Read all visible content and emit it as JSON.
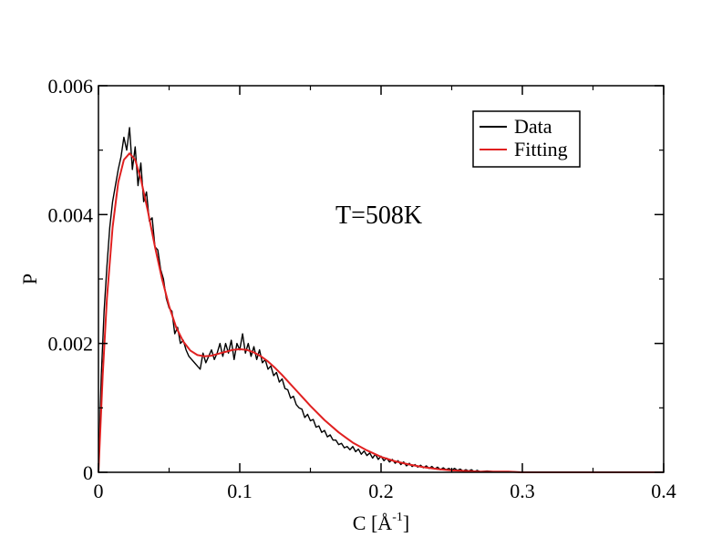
{
  "chart_data": {
    "type": "line",
    "title": "",
    "xlabel": {
      "main": "C [Å",
      "sup": "-1",
      "close": "]"
    },
    "ylabel": "P",
    "xlim": [
      0,
      0.4
    ],
    "ylim": [
      0,
      0.006
    ],
    "x_ticks": [
      {
        "value": 0,
        "label": "0"
      },
      {
        "value": 0.1,
        "label": "0.1"
      },
      {
        "value": 0.2,
        "label": "0.2"
      },
      {
        "value": 0.3,
        "label": "0.3"
      },
      {
        "value": 0.4,
        "label": "0.4"
      }
    ],
    "y_ticks": [
      {
        "value": 0,
        "label": "0"
      },
      {
        "value": 0.002,
        "label": "0.002"
      },
      {
        "value": 0.004,
        "label": "0.004"
      },
      {
        "value": 0.006,
        "label": "0.006"
      }
    ],
    "x_minor_step": 0.05,
    "y_minor_step": 0.001,
    "grid": false,
    "legend_position": "top-right",
    "annotation": "T=508K",
    "series": [
      {
        "name": "Data",
        "color": "#000000",
        "x": [
          0.0,
          0.002,
          0.004,
          0.006,
          0.008,
          0.01,
          0.012,
          0.014,
          0.016,
          0.018,
          0.02,
          0.022,
          0.024,
          0.026,
          0.028,
          0.03,
          0.032,
          0.034,
          0.036,
          0.038,
          0.04,
          0.042,
          0.044,
          0.046,
          0.048,
          0.05,
          0.052,
          0.054,
          0.056,
          0.058,
          0.06,
          0.062,
          0.064,
          0.066,
          0.068,
          0.07,
          0.072,
          0.074,
          0.076,
          0.078,
          0.08,
          0.082,
          0.084,
          0.086,
          0.088,
          0.09,
          0.092,
          0.094,
          0.096,
          0.098,
          0.1,
          0.102,
          0.104,
          0.106,
          0.108,
          0.11,
          0.112,
          0.114,
          0.116,
          0.118,
          0.12,
          0.122,
          0.124,
          0.126,
          0.128,
          0.13,
          0.132,
          0.134,
          0.136,
          0.138,
          0.14,
          0.142,
          0.144,
          0.146,
          0.148,
          0.15,
          0.152,
          0.154,
          0.156,
          0.158,
          0.16,
          0.162,
          0.164,
          0.166,
          0.168,
          0.17,
          0.172,
          0.174,
          0.176,
          0.178,
          0.18,
          0.182,
          0.184,
          0.186,
          0.188,
          0.19,
          0.192,
          0.194,
          0.196,
          0.198,
          0.2,
          0.202,
          0.204,
          0.206,
          0.208,
          0.21,
          0.212,
          0.214,
          0.216,
          0.218,
          0.22,
          0.222,
          0.224,
          0.226,
          0.228,
          0.23,
          0.232,
          0.234,
          0.236,
          0.238,
          0.24,
          0.242,
          0.244,
          0.246,
          0.248,
          0.25,
          0.252,
          0.254,
          0.256,
          0.258,
          0.26,
          0.262,
          0.264,
          0.266,
          0.268,
          0.27,
          0.275,
          0.28,
          0.29,
          0.3,
          0.32,
          0.34,
          0.36,
          0.38,
          0.4
        ],
        "y": [
          0.0,
          0.0015,
          0.0025,
          0.0032,
          0.0038,
          0.0042,
          0.00445,
          0.0047,
          0.0049,
          0.0052,
          0.005,
          0.00535,
          0.0047,
          0.00505,
          0.00445,
          0.0048,
          0.0042,
          0.00435,
          0.0039,
          0.00395,
          0.0035,
          0.00345,
          0.00315,
          0.003,
          0.0027,
          0.00255,
          0.0025,
          0.00215,
          0.00225,
          0.002,
          0.00205,
          0.0019,
          0.0018,
          0.00175,
          0.0017,
          0.00165,
          0.0016,
          0.00185,
          0.0017,
          0.0018,
          0.0019,
          0.00175,
          0.00185,
          0.002,
          0.0018,
          0.002,
          0.00185,
          0.00205,
          0.00175,
          0.002,
          0.0019,
          0.00215,
          0.00185,
          0.002,
          0.0018,
          0.00195,
          0.00175,
          0.0019,
          0.0017,
          0.00175,
          0.0016,
          0.00165,
          0.0015,
          0.00155,
          0.0014,
          0.00145,
          0.0013,
          0.00128,
          0.00115,
          0.00118,
          0.00105,
          0.001,
          0.00098,
          0.00085,
          0.0009,
          0.0008,
          0.00082,
          0.0007,
          0.00072,
          0.00062,
          0.00065,
          0.00055,
          0.00058,
          0.0005,
          0.0005,
          0.00043,
          0.00045,
          0.00038,
          0.0004,
          0.00035,
          0.0004,
          0.00032,
          0.00036,
          0.00028,
          0.00033,
          0.00026,
          0.0003,
          0.00022,
          0.00028,
          0.0002,
          0.00025,
          0.00018,
          0.00022,
          0.00016,
          0.0002,
          0.00014,
          0.00018,
          0.00012,
          0.00016,
          0.0001,
          0.00014,
          9e-05,
          0.00012,
          8e-05,
          0.00011,
          7e-05,
          0.0001,
          6e-05,
          9e-05,
          5e-05,
          8e-05,
          4e-05,
          7e-05,
          4e-05,
          6e-05,
          3e-05,
          6e-05,
          3e-05,
          5e-05,
          2e-05,
          4e-05,
          2e-05,
          4e-05,
          1e-05,
          3e-05,
          1e-05,
          2e-05,
          1e-05,
          1e-05,
          0.0,
          0.0,
          0.0,
          0.0,
          0.0,
          0.0
        ]
      },
      {
        "name": "Fitting",
        "color": "#e02020",
        "x": [
          0.0,
          0.003,
          0.006,
          0.01,
          0.014,
          0.018,
          0.022,
          0.026,
          0.03,
          0.035,
          0.04,
          0.045,
          0.05,
          0.055,
          0.06,
          0.065,
          0.07,
          0.075,
          0.08,
          0.085,
          0.09,
          0.095,
          0.1,
          0.105,
          0.11,
          0.115,
          0.12,
          0.125,
          0.13,
          0.135,
          0.14,
          0.145,
          0.15,
          0.16,
          0.17,
          0.18,
          0.19,
          0.2,
          0.21,
          0.22,
          0.23,
          0.24,
          0.25,
          0.26,
          0.27,
          0.28,
          0.29,
          0.3,
          0.32,
          0.34,
          0.36,
          0.38,
          0.4
        ],
        "y": [
          0.0,
          0.0015,
          0.0027,
          0.0038,
          0.0045,
          0.00485,
          0.00495,
          0.00485,
          0.00455,
          0.00405,
          0.0035,
          0.003,
          0.00258,
          0.00225,
          0.00203,
          0.00189,
          0.00182,
          0.0018,
          0.00181,
          0.00184,
          0.00187,
          0.0019,
          0.00191,
          0.0019,
          0.00186,
          0.0018,
          0.00172,
          0.00162,
          0.00151,
          0.00139,
          0.00127,
          0.00115,
          0.00103,
          0.00081,
          0.00062,
          0.00046,
          0.00034,
          0.00024,
          0.00017,
          0.00012,
          8e-05,
          5e-05,
          3e-05,
          2e-05,
          1e-05,
          1e-05,
          1e-05,
          0.0,
          0.0,
          0.0,
          0.0,
          0.0,
          0.0
        ]
      }
    ]
  }
}
